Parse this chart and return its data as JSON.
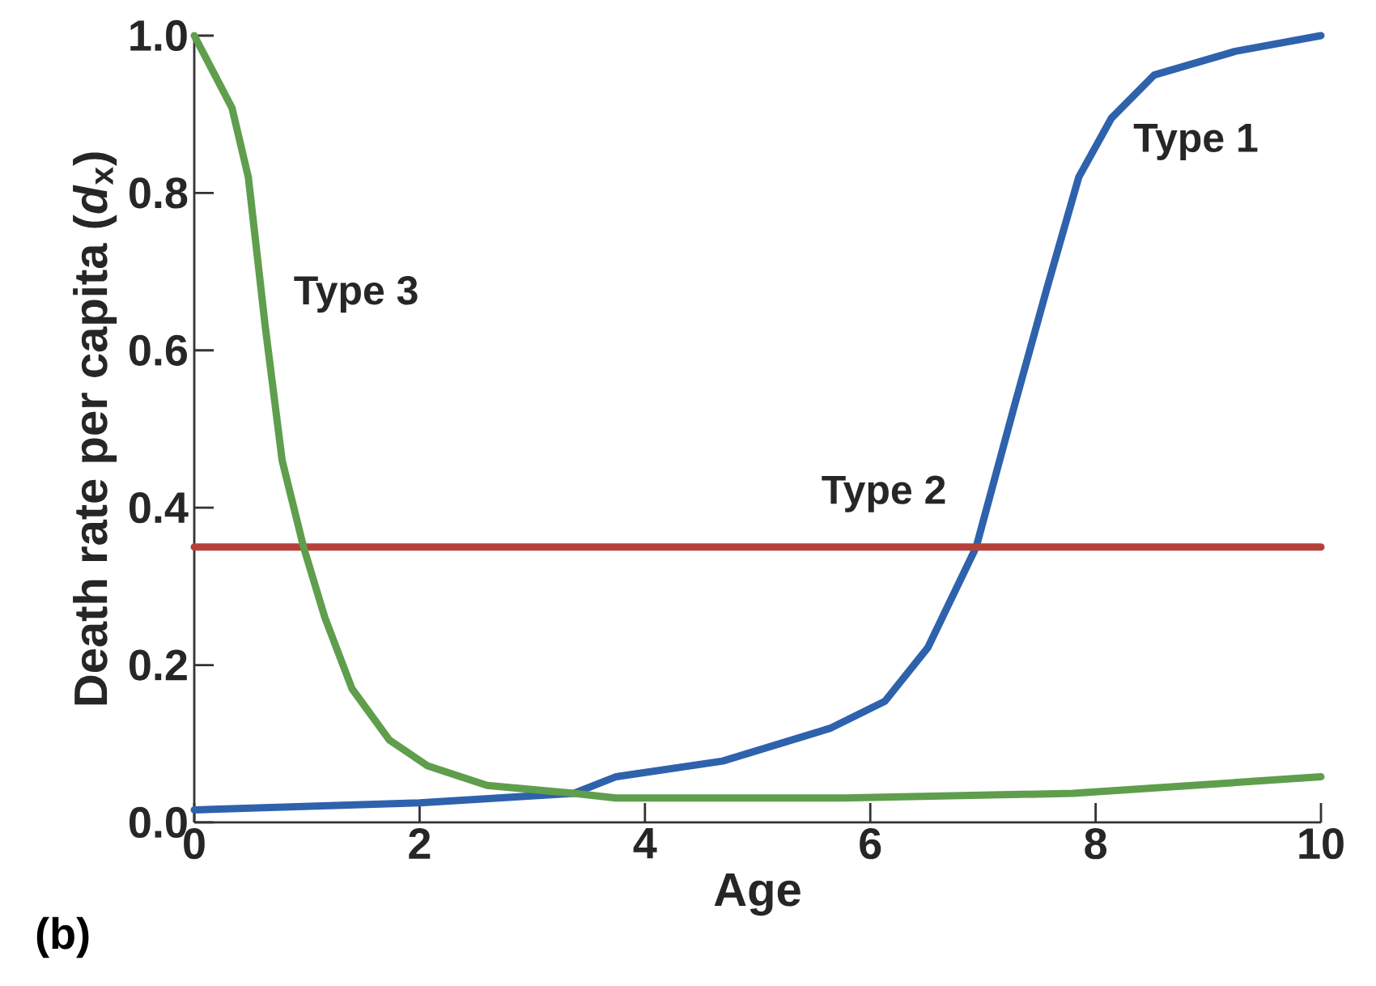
{
  "chart_data": {
    "type": "line",
    "xlabel": "Age",
    "ylabel": "Death rate per capita (*d*$_{x}$)",
    "xlim": [
      0,
      10
    ],
    "ylim": [
      0,
      1
    ],
    "xticks": [
      0,
      2,
      4,
      6,
      8,
      10
    ],
    "yticks": [
      {
        "value": 0,
        "label": "0.0"
      },
      0.2,
      0.4,
      0.6,
      0.8,
      {
        "value": 1,
        "label": "1.0"
      }
    ],
    "grid": false,
    "legend": false,
    "marker": "none",
    "line_style": "solid",
    "annotations": [
      "(b)"
    ],
    "series": [
      {
        "name": "Type 1",
        "color": "#2e62ac",
        "x": [
          0,
          2.0,
          3.37,
          3.74,
          4.69,
          5.65,
          6.13,
          6.51,
          6.94,
          7.28,
          7.57,
          7.85,
          8.14,
          8.52,
          9.24,
          10
        ],
        "values": [
          0.016,
          0.025,
          0.037,
          0.058,
          0.078,
          0.12,
          0.154,
          0.222,
          0.35,
          0.53,
          0.68,
          0.82,
          0.895,
          0.95,
          0.98,
          1.0
        ]
      },
      {
        "name": "Type 2",
        "color": "#b5403a",
        "x": [
          0,
          10
        ],
        "values": [
          0.35,
          0.35
        ]
      },
      {
        "name": "Type 3",
        "color": "#5f9e4c",
        "x": [
          0,
          0.335,
          0.48,
          0.63,
          0.78,
          0.97,
          1.16,
          1.4,
          1.73,
          2.07,
          2.6,
          3.37,
          3.74,
          5.77,
          7.8,
          10
        ],
        "values": [
          1.0,
          0.908,
          0.82,
          0.63,
          0.46,
          0.35,
          0.26,
          0.17,
          0.105,
          0.072,
          0.047,
          0.037,
          0.031,
          0.031,
          0.037,
          0.058
        ]
      }
    ]
  }
}
